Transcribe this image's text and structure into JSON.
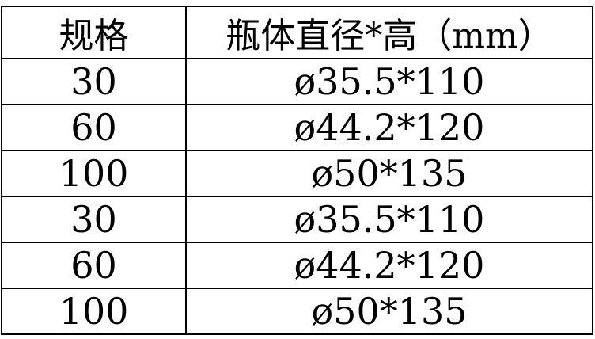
{
  "table": {
    "columns": {
      "spec": "规格",
      "size": "瓶体直径*高（mm）"
    },
    "rows": [
      {
        "spec": "30",
        "size": "ø35.5*110"
      },
      {
        "spec": "60",
        "size": "ø44.2*120"
      },
      {
        "spec": "100",
        "size": "ø50*135"
      },
      {
        "spec": "30",
        "size": "ø35.5*110"
      },
      {
        "spec": "60",
        "size": "ø44.2*120"
      },
      {
        "spec": "100",
        "size": "ø50*135"
      }
    ],
    "border_color": "#000000",
    "background_color": "#ffffff"
  }
}
